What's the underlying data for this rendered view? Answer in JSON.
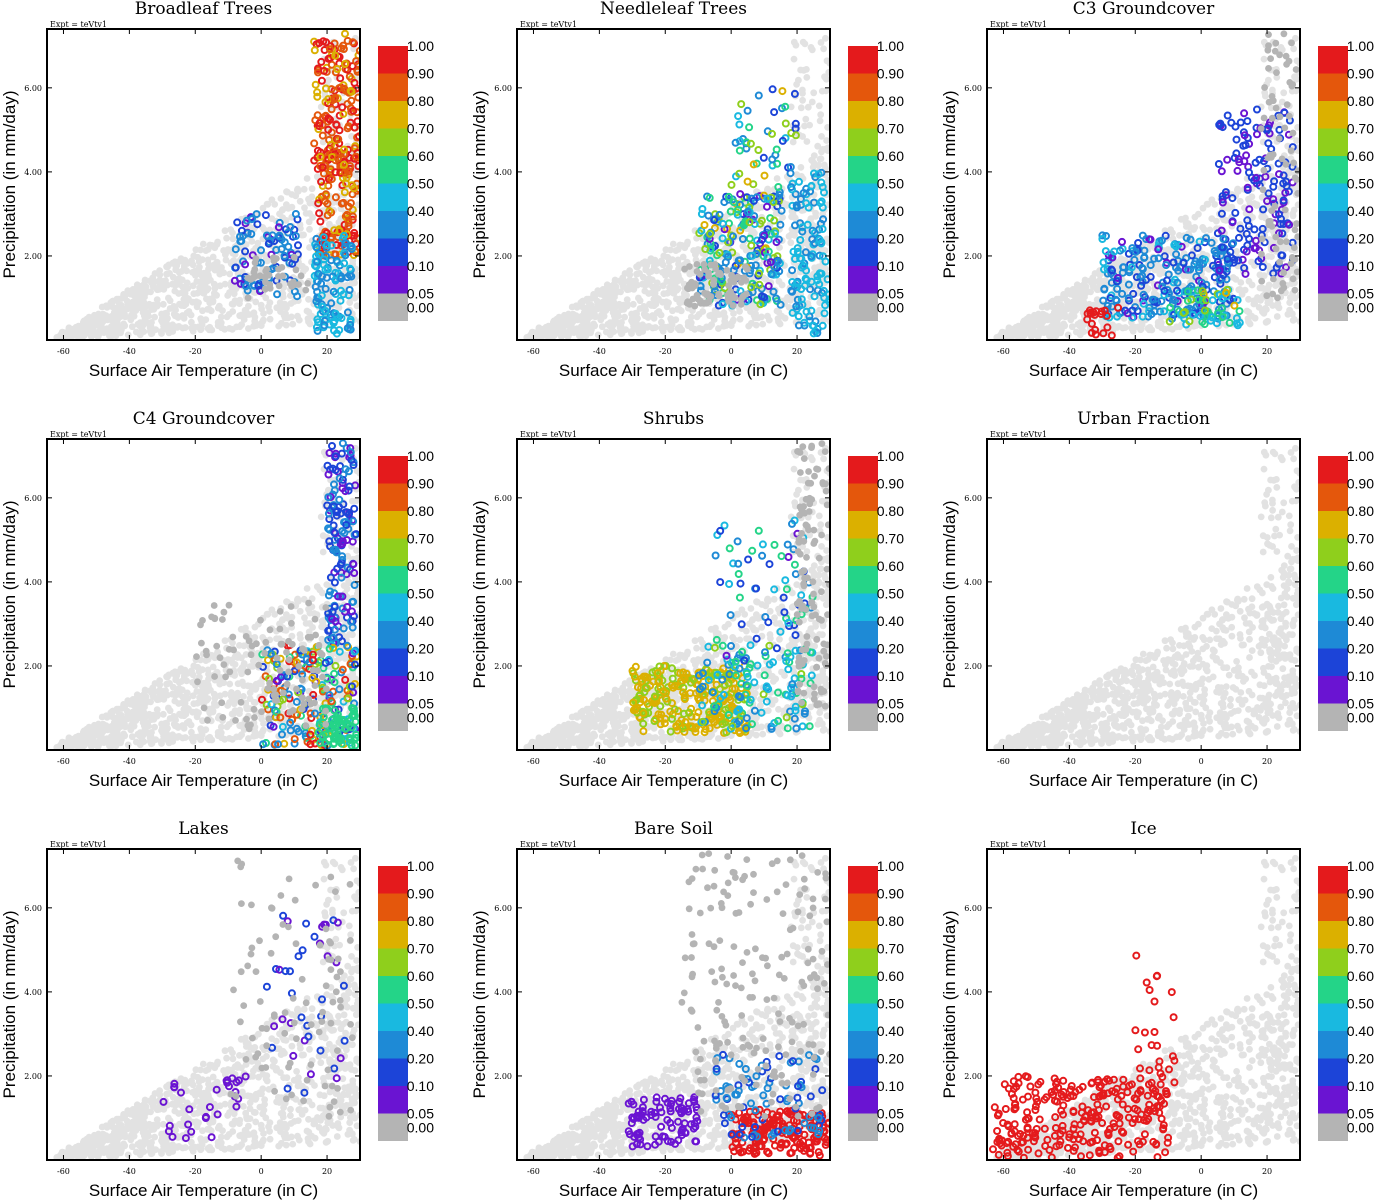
{
  "figure": {
    "colorbar_labels": [
      "1.00",
      "0.90",
      "0.80",
      "0.70",
      "0.60",
      "0.50",
      "0.40",
      "0.20",
      "0.10",
      "0.05",
      "0.00"
    ],
    "colorbar_colors": [
      "#e41a1c",
      "#e4570c",
      "#dbb000",
      "#8fcf1c",
      "#24d488",
      "#19b9e0",
      "#1e8ad6",
      "#1c44d8",
      "#6a14d2",
      "#b4b4b4"
    ],
    "background_point_color": "#e2e2e2",
    "zero_point_color": "#b4b4b4"
  },
  "chart_data": [
    {
      "type": "scatter",
      "title": "Broadleaf Trees",
      "expt": "Expt = teVtv1",
      "xlabel": "Surface Air Temperature (in C)",
      "ylabel": "Precipitation (in mm/day)",
      "xlim": [
        -65,
        30
      ],
      "ylim": [
        0,
        7.4
      ],
      "xticks": [
        -60,
        -40,
        -20,
        0,
        20
      ],
      "xtick_labels": [
        "-60",
        "-40",
        "-20",
        "0",
        "20"
      ],
      "yticks": [
        2,
        4,
        6
      ],
      "ytick_labels": [
        "2.00",
        "4.00",
        "6.00"
      ],
      "clusters": [
        {
          "x": [
            16,
            30
          ],
          "y": [
            4.0,
            7.3
          ],
          "frac": [
            0.75,
            1.0
          ],
          "n": 170
        },
        {
          "x": [
            17,
            30
          ],
          "y": [
            2.0,
            4.5
          ],
          "frac": [
            0.75,
            0.95
          ],
          "n": 110
        },
        {
          "x": [
            16,
            28
          ],
          "y": [
            0.1,
            2.5
          ],
          "frac": [
            0.35,
            0.45
          ],
          "n": 110
        },
        {
          "x": [
            -8,
            12
          ],
          "y": [
            1.0,
            3.0
          ],
          "frac": [
            0.06,
            0.4
          ],
          "n": 90
        },
        {
          "x": [
            -5,
            16
          ],
          "y": [
            1.0,
            2.0
          ],
          "frac": [
            0,
            0
          ],
          "n": 40
        }
      ]
    },
    {
      "type": "scatter",
      "title": "Needleleaf Trees",
      "expt": "Expt = teVtv1",
      "xlabel": "Surface Air Temperature (in C)",
      "ylabel": "Precipitation (in mm/day)",
      "xlim": [
        -65,
        30
      ],
      "ylim": [
        0,
        7.4
      ],
      "xticks": [
        -60,
        -40,
        -20,
        0,
        20
      ],
      "xtick_labels": [
        "-60",
        "-40",
        "-20",
        "0",
        "20"
      ],
      "yticks": [
        2,
        4,
        6
      ],
      "ytick_labels": [
        "2.00",
        "4.00",
        "6.00"
      ],
      "clusters": [
        {
          "x": [
            -10,
            15
          ],
          "y": [
            0.8,
            3.5
          ],
          "frac": [
            0.05,
            0.75
          ],
          "n": 220
        },
        {
          "x": [
            0,
            20
          ],
          "y": [
            3.0,
            6.0
          ],
          "frac": [
            0.05,
            0.75
          ],
          "n": 60
        },
        {
          "x": [
            18,
            30
          ],
          "y": [
            0.1,
            4.0
          ],
          "frac": [
            0.35,
            0.45
          ],
          "n": 120
        },
        {
          "x": [
            -15,
            5
          ],
          "y": [
            0.8,
            1.8
          ],
          "frac": [
            0,
            0
          ],
          "n": 70
        }
      ]
    },
    {
      "type": "scatter",
      "title": "C3 Groundcover",
      "expt": "Expt = teVtv1",
      "xlabel": "Surface Air Temperature (in C)",
      "ylabel": "Precipitation (in mm/day)",
      "xlim": [
        -65,
        30
      ],
      "ylim": [
        0,
        7.4
      ],
      "xticks": [
        -60,
        -40,
        -20,
        0,
        20
      ],
      "xtick_labels": [
        "-60",
        "-40",
        "-20",
        "0",
        "20"
      ],
      "yticks": [
        2,
        4,
        6
      ],
      "ytick_labels": [
        "2.00",
        "4.00",
        "6.00"
      ],
      "clusters": [
        {
          "x": [
            -30,
            10
          ],
          "y": [
            0.5,
            2.5
          ],
          "frac": [
            0.06,
            0.45
          ],
          "n": 260
        },
        {
          "x": [
            5,
            28
          ],
          "y": [
            1.5,
            5.5
          ],
          "frac": [
            0.05,
            0.2
          ],
          "n": 150
        },
        {
          "x": [
            -35,
            -25
          ],
          "y": [
            0.1,
            0.8
          ],
          "frac": [
            0.9,
            1.0
          ],
          "n": 20
        },
        {
          "x": [
            -10,
            12
          ],
          "y": [
            0.3,
            1.2
          ],
          "frac": [
            0.4,
            0.75
          ],
          "n": 50
        },
        {
          "x": [
            18,
            30
          ],
          "y": [
            1.0,
            7.3
          ],
          "frac": [
            0,
            0
          ],
          "n": 80
        }
      ]
    },
    {
      "type": "scatter",
      "title": "C4 Groundcover",
      "expt": "Expt = teVtv1",
      "xlabel": "Surface Air Temperature (in C)",
      "ylabel": "Precipitation (in mm/day)",
      "xlim": [
        -65,
        30
      ],
      "ylim": [
        0,
        7.4
      ],
      "xticks": [
        -60,
        -40,
        -20,
        0,
        20
      ],
      "xtick_labels": [
        "-60",
        "-40",
        "-20",
        "0",
        "20"
      ],
      "yticks": [
        2,
        4,
        6
      ],
      "ytick_labels": [
        "2.00",
        "4.00",
        "6.00"
      ],
      "clusters": [
        {
          "x": [
            20,
            29
          ],
          "y": [
            2.5,
            7.3
          ],
          "frac": [
            0.05,
            0.3
          ],
          "n": 150
        },
        {
          "x": [
            0,
            29
          ],
          "y": [
            0.1,
            2.5
          ],
          "frac": [
            0.05,
            1.0
          ],
          "n": 220
        },
        {
          "x": [
            17,
            29
          ],
          "y": [
            0.1,
            1.0
          ],
          "frac": [
            0.5,
            0.55
          ],
          "n": 60
        },
        {
          "x": [
            -20,
            20
          ],
          "y": [
            0.5,
            3.5
          ],
          "frac": [
            0,
            0
          ],
          "n": 100
        }
      ]
    },
    {
      "type": "scatter",
      "title": "Shrubs",
      "expt": "Expt = teVtv1",
      "xlabel": "Surface Air Temperature (in C)",
      "ylabel": "Precipitation (in mm/day)",
      "xlim": [
        -65,
        30
      ],
      "ylim": [
        0,
        7.4
      ],
      "xticks": [
        -60,
        -40,
        -20,
        0,
        20
      ],
      "xtick_labels": [
        "-60",
        "-40",
        "-20",
        "0",
        "20"
      ],
      "yticks": [
        2,
        4,
        6
      ],
      "ytick_labels": [
        "2.00",
        "4.00",
        "6.00"
      ],
      "clusters": [
        {
          "x": [
            -30,
            5
          ],
          "y": [
            0.4,
            2.0
          ],
          "frac": [
            0.65,
            0.8
          ],
          "n": 260
        },
        {
          "x": [
            -10,
            25
          ],
          "y": [
            0.5,
            2.5
          ],
          "frac": [
            0.3,
            0.65
          ],
          "n": 120
        },
        {
          "x": [
            -5,
            25
          ],
          "y": [
            2.0,
            5.5
          ],
          "frac": [
            0.05,
            0.6
          ],
          "n": 70
        },
        {
          "x": [
            20,
            30
          ],
          "y": [
            1.0,
            7.3
          ],
          "frac": [
            0,
            0
          ],
          "n": 110
        }
      ]
    },
    {
      "type": "scatter",
      "title": "Urban Fraction",
      "expt": "Expt = teVtv1",
      "xlabel": "Surface Air Temperature (in C)",
      "ylabel": "Precipitation (in mm/day)",
      "xlim": [
        -65,
        30
      ],
      "ylim": [
        0,
        7.4
      ],
      "xticks": [
        -60,
        -40,
        -20,
        0,
        20
      ],
      "xtick_labels": [
        "-60",
        "-40",
        "-20",
        "0",
        "20"
      ],
      "yticks": [
        2,
        4,
        6
      ],
      "ytick_labels": [
        "2.00",
        "4.00",
        "6.00"
      ],
      "clusters": []
    },
    {
      "type": "scatter",
      "title": "Lakes",
      "expt": "Expt = teVtv1",
      "xlabel": "Surface Air Temperature (in C)",
      "ylabel": "Precipitation (in mm/day)",
      "xlim": [
        -65,
        30
      ],
      "ylim": [
        0,
        7.4
      ],
      "xticks": [
        -60,
        -40,
        -20,
        0,
        20
      ],
      "xtick_labels": [
        "-60",
        "-40",
        "-20",
        "0",
        "20"
      ],
      "yticks": [
        2,
        4,
        6
      ],
      "ytick_labels": [
        "2.00",
        "4.00",
        "6.00"
      ],
      "clusters": [
        {
          "x": [
            -30,
            0
          ],
          "y": [
            0.5,
            2.0
          ],
          "frac": [
            0.06,
            0.08
          ],
          "n": 30
        },
        {
          "x": [
            0,
            26
          ],
          "y": [
            1.5,
            6.0
          ],
          "frac": [
            0.06,
            0.12
          ],
          "n": 40
        },
        {
          "x": [
            -10,
            28
          ],
          "y": [
            1.0,
            7.3
          ],
          "frac": [
            0,
            0
          ],
          "n": 90
        }
      ]
    },
    {
      "type": "scatter",
      "title": "Bare Soil",
      "expt": "Expt = teVtv1",
      "xlabel": "Surface Air Temperature (in C)",
      "ylabel": "Precipitation (in mm/day)",
      "xlim": [
        -65,
        30
      ],
      "ylim": [
        0,
        7.4
      ],
      "xticks": [
        -60,
        -40,
        -20,
        0,
        20
      ],
      "xtick_labels": [
        "-60",
        "-40",
        "-20",
        "0",
        "20"
      ],
      "yticks": [
        2,
        4,
        6
      ],
      "ytick_labels": [
        "2.00",
        "4.00",
        "6.00"
      ],
      "clusters": [
        {
          "x": [
            -32,
            -10
          ],
          "y": [
            0.3,
            1.5
          ],
          "frac": [
            0.05,
            0.08
          ],
          "n": 90
        },
        {
          "x": [
            0,
            30
          ],
          "y": [
            0.1,
            1.2
          ],
          "frac": [
            0.9,
            1.0
          ],
          "n": 170
        },
        {
          "x": [
            -5,
            28
          ],
          "y": [
            0.5,
            2.5
          ],
          "frac": [
            0.1,
            0.4
          ],
          "n": 90
        },
        {
          "x": [
            -15,
            30
          ],
          "y": [
            1.0,
            7.3
          ],
          "frac": [
            0,
            0
          ],
          "n": 180
        }
      ]
    },
    {
      "type": "scatter",
      "title": "Ice",
      "expt": "Expt = teVtv1",
      "xlabel": "Surface Air Temperature (in C)",
      "ylabel": "Precipitation (in mm/day)",
      "xlim": [
        -65,
        30
      ],
      "ylim": [
        0,
        7.4
      ],
      "xticks": [
        -60,
        -40,
        -20,
        0,
        20
      ],
      "xtick_labels": [
        "-60",
        "-40",
        "-20",
        "0",
        "20"
      ],
      "yticks": [
        2,
        4,
        6
      ],
      "ytick_labels": [
        "2.00",
        "4.00",
        "6.00"
      ],
      "clusters": [
        {
          "x": [
            -64,
            -10
          ],
          "y": [
            0.05,
            2.0
          ],
          "frac": [
            0.95,
            1.0
          ],
          "n": 260
        },
        {
          "x": [
            -20,
            -8
          ],
          "y": [
            1.5,
            5.0
          ],
          "frac": [
            0.95,
            1.0
          ],
          "n": 30
        }
      ]
    }
  ]
}
